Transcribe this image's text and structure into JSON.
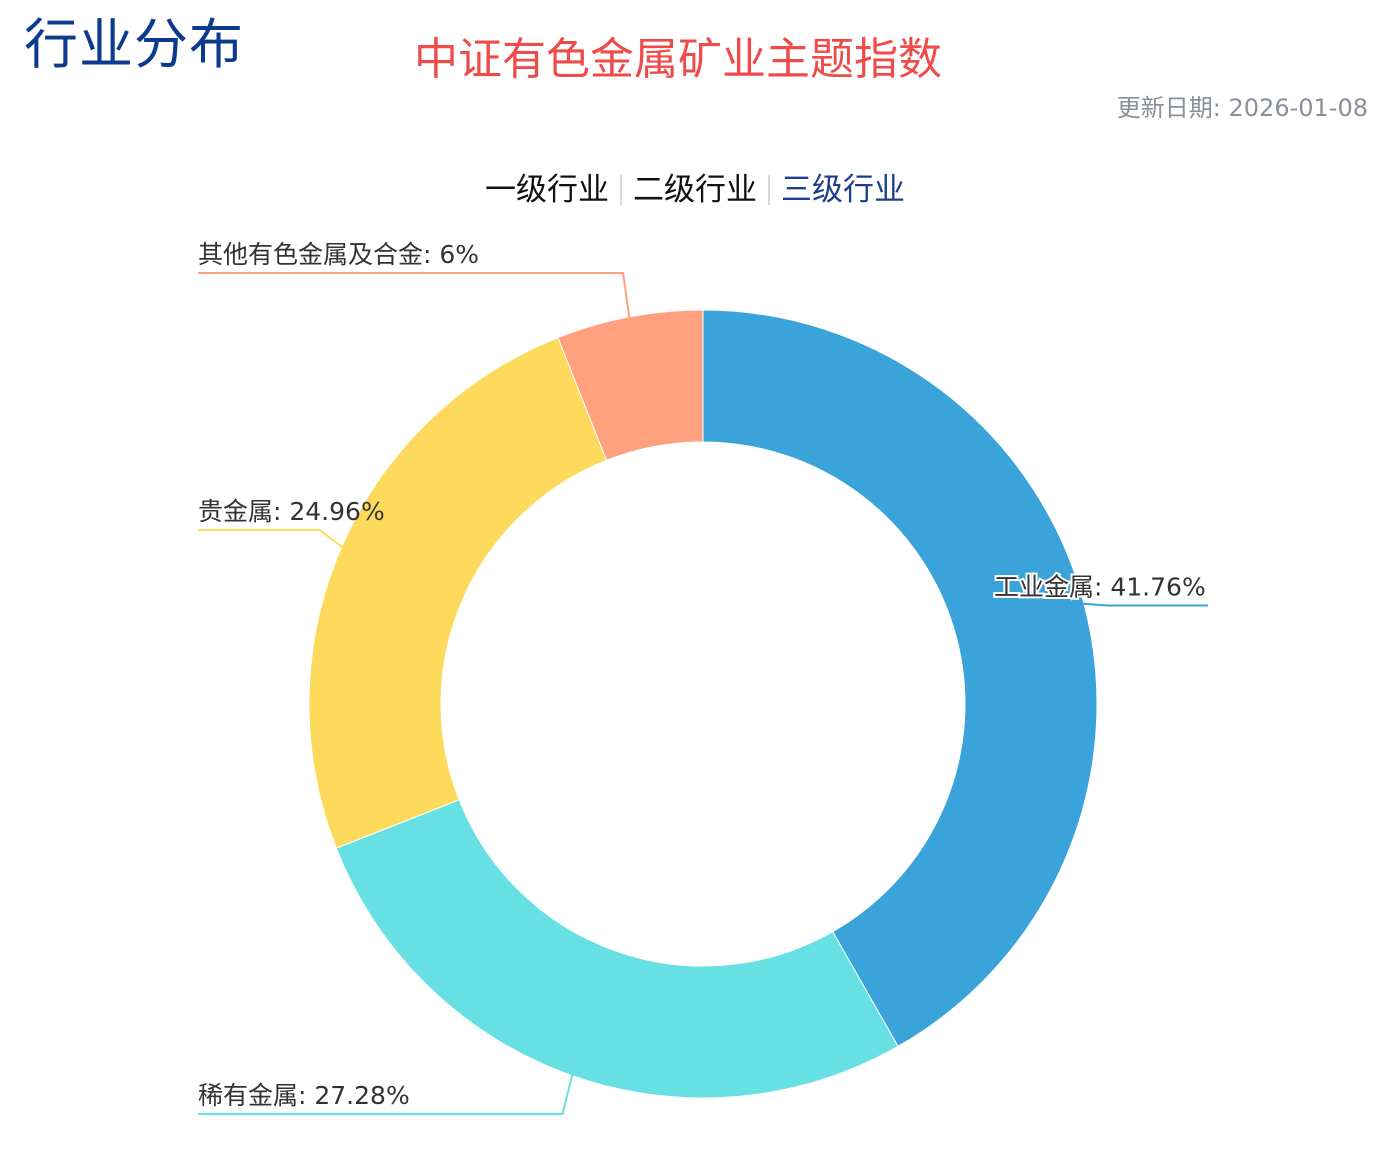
{
  "header": {
    "section_title": "行业分布",
    "chart_title": "中证有色金属矿业主题指数",
    "update_label": "更新日期:",
    "update_date": "2026-01-08"
  },
  "tabs": [
    {
      "label": "一级行业",
      "active": false
    },
    {
      "label": "二级行业",
      "active": false
    },
    {
      "label": "三级行业",
      "active": true
    }
  ],
  "colors": {
    "section_title": "#0b3a8e",
    "chart_title": "#ef4b4b",
    "active_tab": "#1f3d8f"
  },
  "chart_data": {
    "type": "pie",
    "variant": "donut",
    "start": "12 o'clock, clockwise",
    "slices": [
      {
        "name": "工业金属",
        "value": 41.76,
        "label": "工业金属: 41.76%",
        "color": "#3aa3d9",
        "label_side": "right"
      },
      {
        "name": "稀有金属",
        "value": 27.28,
        "label": "稀有金属: 27.28%",
        "color": "#67e0e3",
        "label_side": "left"
      },
      {
        "name": "贵金属",
        "value": 24.96,
        "label": "贵金属: 24.96%",
        "color": "#fdda5b",
        "label_side": "left"
      },
      {
        "name": "其他有色金属及合金",
        "value": 6,
        "label": "其他有色金属及合金: 6%",
        "color": "#ffa07f",
        "label_side": "left"
      }
    ]
  }
}
